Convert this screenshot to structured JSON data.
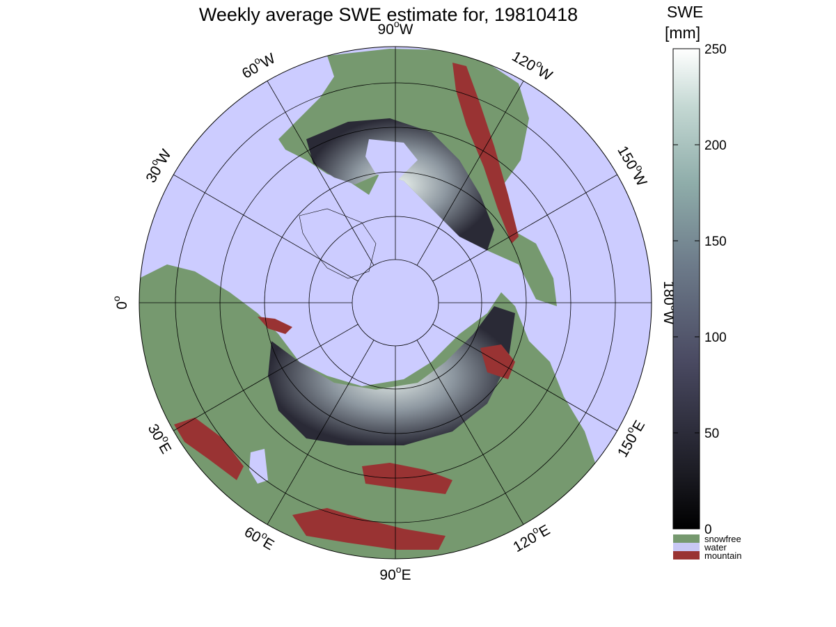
{
  "title": "Weekly average SWE estimate for, 19810418",
  "colorbar": {
    "unit_line1": "SWE",
    "unit_line2": "[mm]",
    "range": [
      0,
      250
    ],
    "ticks": [
      "0",
      "50",
      "100",
      "150",
      "200",
      "250"
    ],
    "categories": [
      {
        "label": "snowfree",
        "color": "#76996f"
      },
      {
        "label": "water",
        "color": "#c8c8f5"
      },
      {
        "label": "mountain",
        "color": "#993333"
      }
    ]
  },
  "map": {
    "projection": "polar-stereographic-north",
    "ocean_color": "#ccccff",
    "land_color": "#76996f",
    "mountain_color": "#993333",
    "grid": true,
    "longitude_labels": [
      {
        "deg": "90",
        "hem": "W"
      },
      {
        "deg": "120",
        "hem": "W"
      },
      {
        "deg": "150",
        "hem": "W"
      },
      {
        "deg": "180",
        "hem": "W"
      },
      {
        "deg": "150",
        "hem": "E"
      },
      {
        "deg": "120",
        "hem": "E"
      },
      {
        "deg": "90",
        "hem": "E"
      },
      {
        "deg": "60",
        "hem": "E"
      },
      {
        "deg": "30",
        "hem": "E"
      },
      {
        "deg": "0",
        "hem": ""
      },
      {
        "deg": "30",
        "hem": "W"
      },
      {
        "deg": "60",
        "hem": "W"
      }
    ]
  }
}
